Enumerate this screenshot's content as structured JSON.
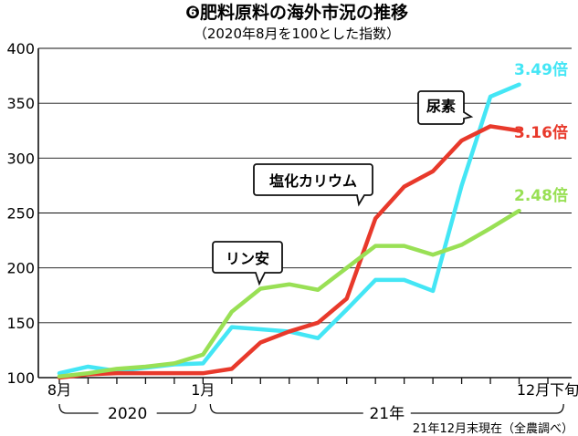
{
  "chart_data": {
    "type": "line",
    "title": "❻肥料原料の海外市況の推移",
    "subtitle": "（2020年8月を100とした指数）",
    "yticks": [
      100,
      150,
      200,
      250,
      300,
      350,
      400
    ],
    "ylim": [
      100,
      400
    ],
    "x": [
      0,
      1,
      2,
      3,
      4,
      5,
      6,
      7,
      8,
      9,
      10,
      11,
      12,
      13,
      14,
      15,
      16,
      17
    ],
    "x_range": [
      0,
      17.8
    ],
    "x_tick_labels": [
      {
        "x": 0,
        "text": "8月"
      },
      {
        "x": 5,
        "text": "1月"
      },
      {
        "x": 17,
        "text": "12月下旬"
      }
    ],
    "year_labels": [
      {
        "text": "2020",
        "from": 0,
        "to": 5
      },
      {
        "text": "21年",
        "from": 5,
        "to": 17.8
      }
    ],
    "note": "21年12月末現在（全農調べ）",
    "series": [
      {
        "key": "urea",
        "name": "尿素",
        "color": "#44e6f5",
        "end_label": "3.49倍",
        "values": [
          104,
          110,
          106,
          109,
          112,
          113,
          146,
          144,
          142,
          136,
          162,
          189,
          189,
          179,
          275,
          356,
          367,
          null
        ]
      },
      {
        "key": "potassium",
        "name": "塩化カリウム",
        "color": "#e8392b",
        "end_label": "3.16倍",
        "values": [
          100,
          103,
          104,
          104,
          104,
          104,
          108,
          132,
          142,
          150,
          172,
          245,
          274,
          288,
          316,
          329,
          325,
          null
        ]
      },
      {
        "key": "phosphate",
        "name": "リン安",
        "color": "#99e055",
        "end_label": "2.48倍",
        "values": [
          101,
          104,
          108,
          110,
          113,
          121,
          160,
          181,
          185,
          180,
          200,
          220,
          220,
          212,
          221,
          236,
          252,
          null
        ]
      }
    ]
  }
}
